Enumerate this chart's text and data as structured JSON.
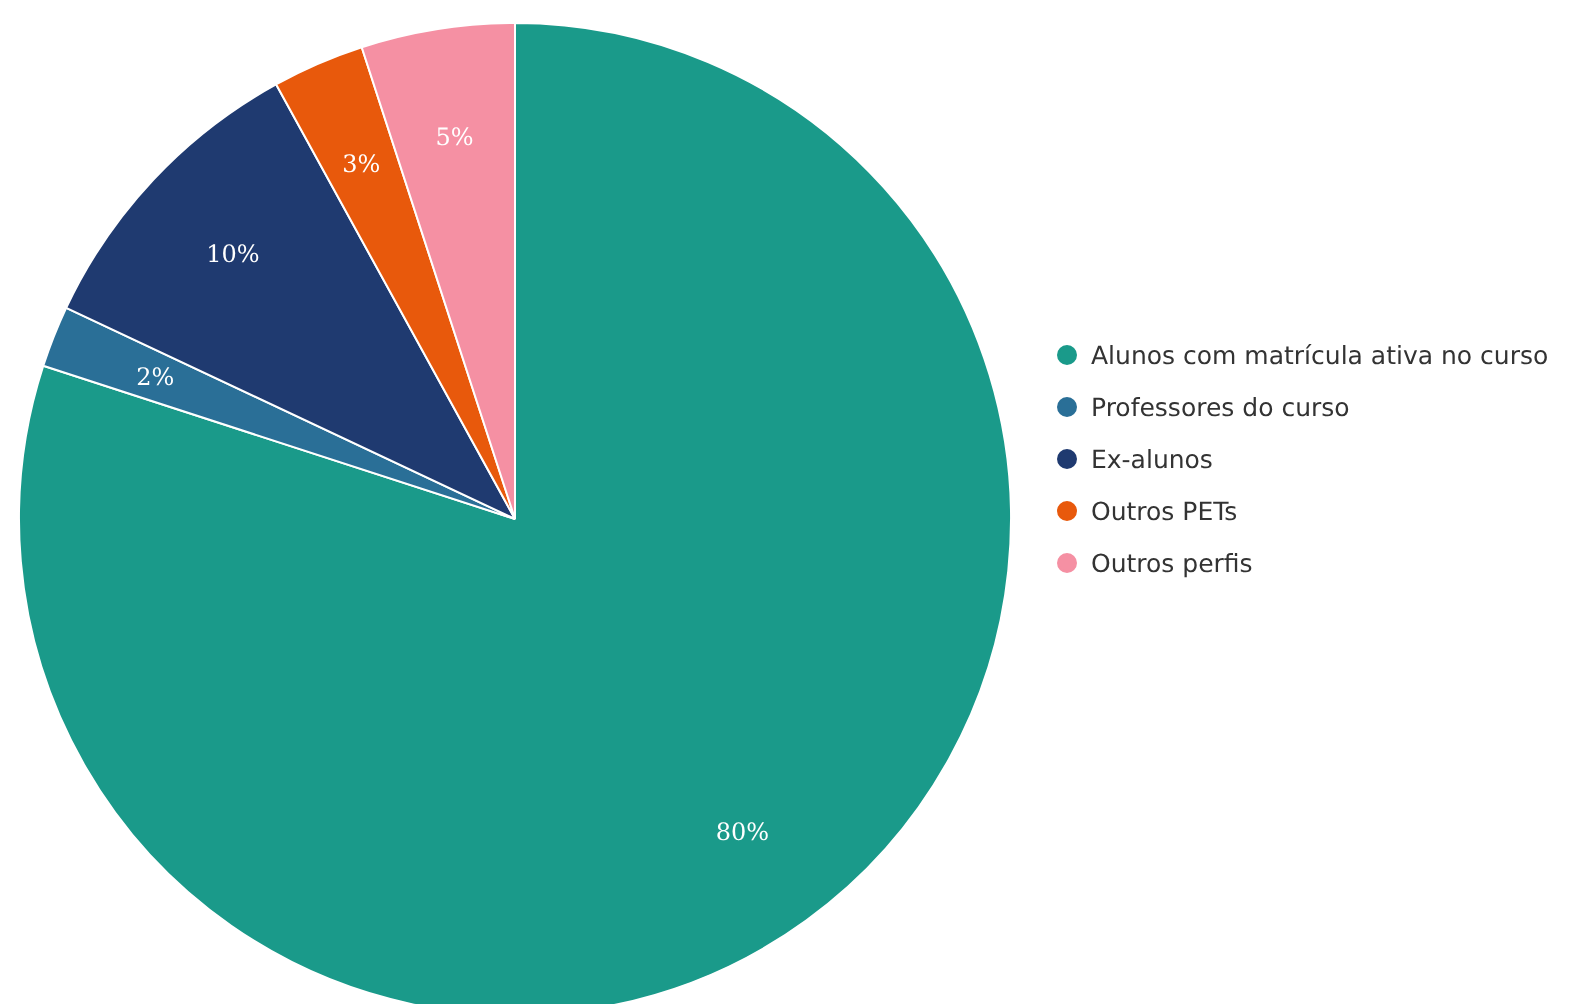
{
  "chart_data": {
    "type": "pie",
    "categories": [
      "Alunos com matrícula ativa no curso",
      "Professores do curso",
      "Ex-alunos",
      "Outros PETs",
      "Outros perfis"
    ],
    "values": [
      80,
      2,
      10,
      3,
      5
    ],
    "colors": [
      "#1a9a8a",
      "#2a6f97",
      "#1f3a70",
      "#e8590c",
      "#f590a3"
    ],
    "value_labels": [
      "80%",
      "2%",
      "10%",
      "3%",
      "5%"
    ],
    "legend": "right"
  }
}
